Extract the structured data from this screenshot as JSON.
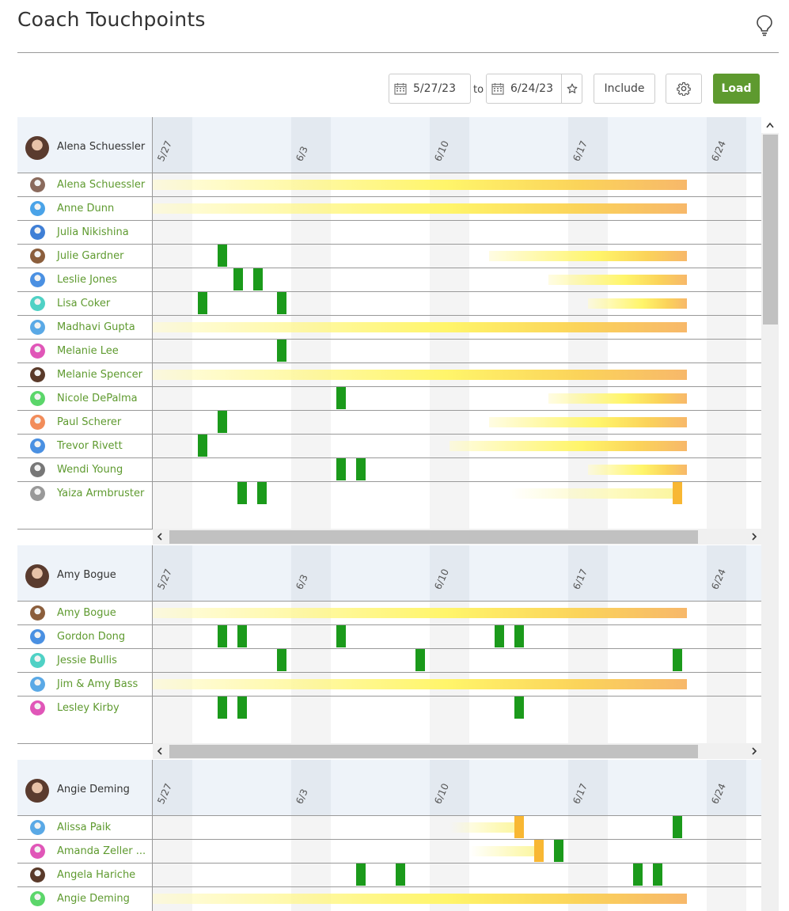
{
  "page": {
    "title": "Coach Touchpoints"
  },
  "toolbar": {
    "start_date": "5/27/23",
    "to_label": "to",
    "end_date": "6/24/23",
    "include_label": "Include",
    "load_label": "Load"
  },
  "icons": {
    "bulb": "lightbulb-icon",
    "calendar": "calendar-icon",
    "star": "star-icon",
    "gear": "gear-icon"
  },
  "colors": {
    "accent": "#5e9a2f",
    "touch": "#1b9a1b",
    "pending": "#f8b733",
    "recency_from": "#fffbd0",
    "recency_to": "#f7b86a"
  },
  "date_ticks": [
    "5/27",
    "6/3",
    "6/10",
    "6/17",
    "6/24"
  ],
  "sections": [
    {
      "coach": "Alena Schuessler",
      "clients": [
        {
          "name": "Alena Schuessler",
          "recency": [
            0,
            27
          ],
          "touches": []
        },
        {
          "name": "Anne Dunn",
          "recency": [
            0,
            27
          ],
          "touches": []
        },
        {
          "name": "Julia Nikishina",
          "recency": null,
          "touches": []
        },
        {
          "name": "Julie Gardner",
          "recency": [
            17,
            27
          ],
          "touches": [
            {
              "day": 3.5,
              "type": "green"
            }
          ]
        },
        {
          "name": "Leslie Jones",
          "recency": [
            20,
            27
          ],
          "touches": [
            {
              "day": 4.3,
              "type": "green"
            },
            {
              "day": 5.3,
              "type": "green"
            }
          ]
        },
        {
          "name": "Lisa Coker",
          "recency": [
            22,
            27
          ],
          "touches": [
            {
              "day": 2.5,
              "type": "green"
            },
            {
              "day": 6.5,
              "type": "green"
            }
          ]
        },
        {
          "name": "Madhavi Gupta",
          "recency": [
            0,
            27
          ],
          "touches": []
        },
        {
          "name": "Melanie Lee",
          "recency": null,
          "touches": [
            {
              "day": 6.5,
              "type": "green"
            }
          ]
        },
        {
          "name": "Melanie Spencer",
          "recency": [
            0,
            27
          ],
          "touches": []
        },
        {
          "name": "Nicole DePalma",
          "recency": [
            20,
            27
          ],
          "touches": [
            {
              "day": 9.5,
              "type": "green"
            }
          ]
        },
        {
          "name": "Paul Scherer",
          "recency": [
            17,
            27
          ],
          "touches": [
            {
              "day": 3.5,
              "type": "green"
            }
          ]
        },
        {
          "name": "Trevor Rivett",
          "recency": [
            15,
            27
          ],
          "touches": [
            {
              "day": 2.5,
              "type": "green"
            }
          ]
        },
        {
          "name": "Wendi Young",
          "recency": [
            22,
            27
          ],
          "touches": [
            {
              "day": 9.5,
              "type": "green"
            },
            {
              "day": 10.5,
              "type": "green"
            }
          ]
        },
        {
          "name": "Yaiza Armbruster",
          "recency": [
            18,
            26.4
          ],
          "touches": [
            {
              "day": 4.5,
              "type": "green"
            },
            {
              "day": 5.5,
              "type": "green"
            },
            {
              "day": 26.5,
              "type": "orange"
            }
          ]
        }
      ]
    },
    {
      "coach": "Amy Bogue",
      "clients": [
        {
          "name": "Amy Bogue",
          "recency": [
            0,
            27
          ],
          "touches": []
        },
        {
          "name": "Gordon Dong",
          "recency": null,
          "touches": [
            {
              "day": 3.5,
              "type": "green"
            },
            {
              "day": 4.5,
              "type": "green"
            },
            {
              "day": 9.5,
              "type": "green"
            },
            {
              "day": 17.5,
              "type": "green"
            },
            {
              "day": 18.5,
              "type": "green"
            }
          ]
        },
        {
          "name": "Jessie Bullis",
          "recency": null,
          "touches": [
            {
              "day": 6.5,
              "type": "green"
            },
            {
              "day": 13.5,
              "type": "green"
            },
            {
              "day": 26.5,
              "type": "green"
            }
          ]
        },
        {
          "name": "Jim & Amy Bass",
          "recency": [
            0,
            27
          ],
          "touches": []
        },
        {
          "name": "Lesley Kirby",
          "recency": null,
          "touches": [
            {
              "day": 3.5,
              "type": "green"
            },
            {
              "day": 4.5,
              "type": "green"
            },
            {
              "day": 18.5,
              "type": "green"
            }
          ]
        }
      ]
    },
    {
      "coach": "Angie Deming",
      "clients": [
        {
          "name": "Alissa Paik",
          "recency": [
            15,
            18.5
          ],
          "touches": [
            {
              "day": 18.5,
              "type": "orange"
            },
            {
              "day": 26.5,
              "type": "green"
            }
          ]
        },
        {
          "name": "Amanda Zeller ...",
          "recency": [
            16,
            19.5
          ],
          "touches": [
            {
              "day": 19.5,
              "type": "orange"
            },
            {
              "day": 20.5,
              "type": "green"
            }
          ]
        },
        {
          "name": "Angela Hariche",
          "recency": null,
          "touches": [
            {
              "day": 10.5,
              "type": "green"
            },
            {
              "day": 12.5,
              "type": "green"
            },
            {
              "day": 24.5,
              "type": "green"
            },
            {
              "day": 25.5,
              "type": "green"
            }
          ]
        },
        {
          "name": "Angie Deming",
          "recency": [
            0,
            27
          ],
          "touches": []
        }
      ]
    }
  ]
}
